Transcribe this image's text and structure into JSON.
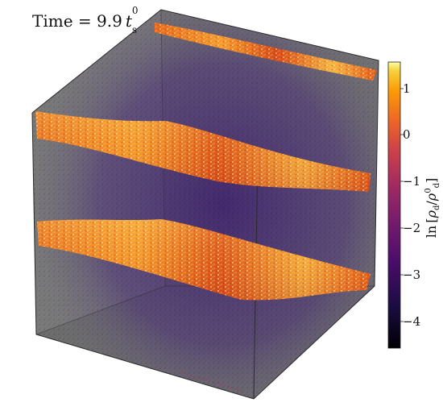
{
  "figure": {
    "time_label": {
      "prefix": "Time = 9.9",
      "symbol": "t",
      "subscript": "s",
      "superscript": "0"
    },
    "colorbar": {
      "label": {
        "ln": "ln",
        "rho": "ρ",
        "sub": "d",
        "sup": "0"
      },
      "ticks": [
        "1",
        "0",
        "−1",
        "−2",
        "−3",
        "−4"
      ],
      "tick_values": [
        1,
        0,
        -1,
        -2,
        -3,
        -4
      ],
      "range": [
        -4.6,
        1.6
      ],
      "colormap": "inferno"
    },
    "dust_layers": 3,
    "colors": {
      "wall": "#7a7a7a",
      "deep": "#1a0d3a",
      "mid": "#5a2b7e",
      "layer_low": "#c2441d",
      "layer_mid": "#f08a26",
      "layer_high": "#ffd968"
    }
  }
}
